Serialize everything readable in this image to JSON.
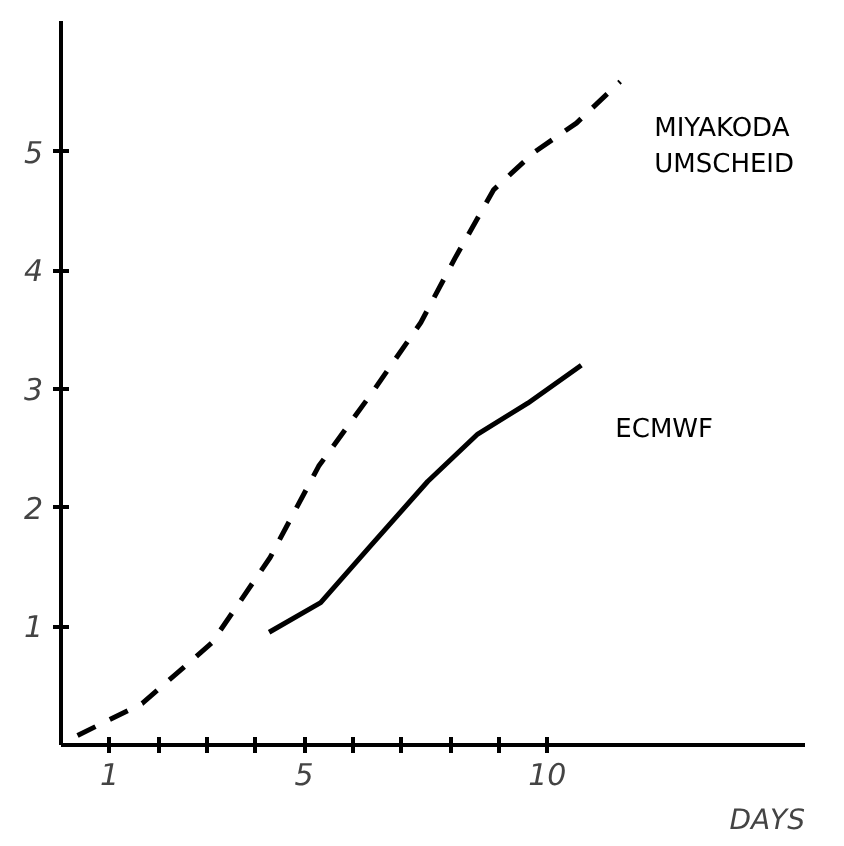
{
  "chart_data": {
    "type": "line",
    "xlabel": "DAYS",
    "xlim": [
      0,
      15.3
    ],
    "ylim": [
      0,
      6.1
    ],
    "xticks": [
      1,
      {
        "value": 2,
        "label": null
      },
      {
        "value": 3,
        "label": null
      },
      {
        "value": 4,
        "label": null
      },
      5,
      {
        "value": 6,
        "label": null
      },
      {
        "value": 7,
        "label": null
      },
      {
        "value": 8,
        "label": null
      },
      {
        "value": 9,
        "label": null
      },
      10
    ],
    "yticks": [
      1,
      2,
      3,
      4,
      5
    ],
    "grid": false,
    "marker": "none",
    "series": [
      {
        "name": "MIYAKODA\nUMSCHEID",
        "color": "#000000",
        "line_style": "dashed",
        "x": [
          0.34,
          1.67,
          3.1,
          4.3,
          5.3,
          6.4,
          7.4,
          8.1,
          8.9,
          9.75,
          10.6,
          11.5
        ],
        "values": [
          0.08,
          0.35,
          0.86,
          1.58,
          2.35,
          2.97,
          3.56,
          4.1,
          4.68,
          5.0,
          5.24,
          5.59
        ]
      },
      {
        "name": "ECMWF",
        "color": "#000000",
        "line_style": "solid",
        "x": [
          4.28,
          5.34,
          6.37,
          7.54,
          8.57,
          9.6,
          10.7
        ],
        "values": [
          0.95,
          1.2,
          1.68,
          2.22,
          2.62,
          2.88,
          3.2
        ]
      }
    ]
  }
}
